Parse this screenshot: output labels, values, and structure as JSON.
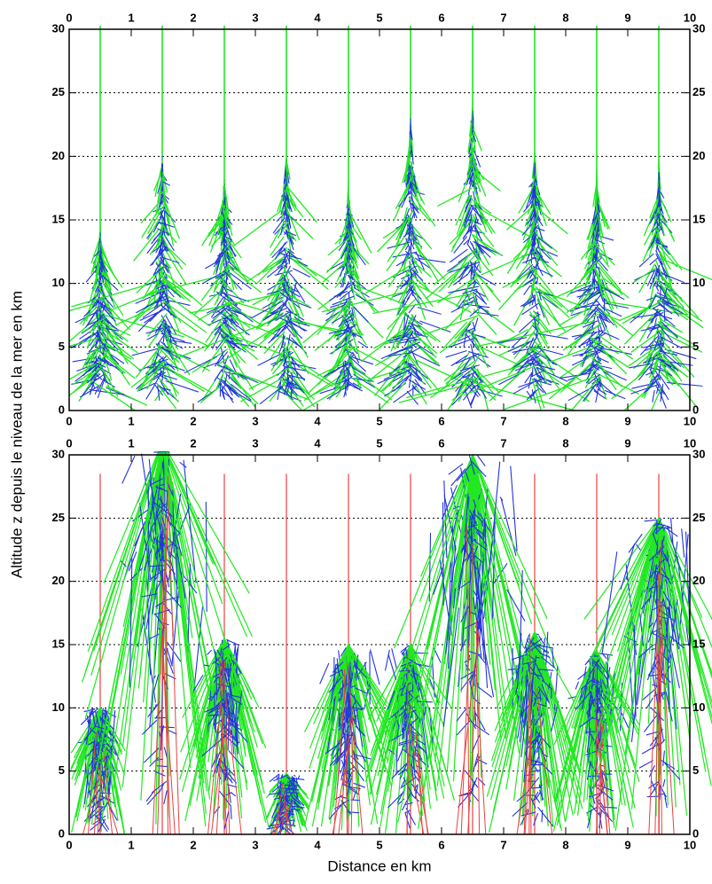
{
  "chart_data": [
    {
      "type": "tree",
      "ylabel": "Altitude z depuis le niveau de la mer en km",
      "x": [
        0.5,
        1.5,
        2.5,
        3.5,
        4.5,
        5.5,
        6.5,
        7.5,
        8.5,
        9.5
      ],
      "values": [
        14,
        20,
        18,
        20,
        17,
        23,
        24,
        20,
        18,
        19
      ],
      "xlim": [
        0,
        10
      ],
      "ylim": [
        0,
        30
      ],
      "xticks": [
        0,
        1,
        2,
        3,
        4,
        5,
        6,
        7,
        8,
        9,
        10
      ],
      "yticks": [
        0,
        5,
        10,
        15,
        20,
        25,
        30
      ],
      "grid": true,
      "stems": false
    },
    {
      "type": "tree",
      "xlabel": "Distance en km",
      "x": [
        0.5,
        1.5,
        2.5,
        3.5,
        4.5,
        5.5,
        6.5,
        7.5,
        8.5,
        9.5
      ],
      "values": [
        10,
        31,
        15.5,
        4.8,
        15,
        15,
        30,
        16,
        14.5,
        25
      ],
      "xlim": [
        0,
        10
      ],
      "ylim": [
        0,
        30
      ],
      "xticks": [
        0,
        1,
        2,
        3,
        4,
        5,
        6,
        7,
        8,
        9,
        10
      ],
      "yticks": [
        0,
        5,
        10,
        15,
        20,
        25,
        30
      ],
      "grid": true,
      "stems": true
    }
  ]
}
